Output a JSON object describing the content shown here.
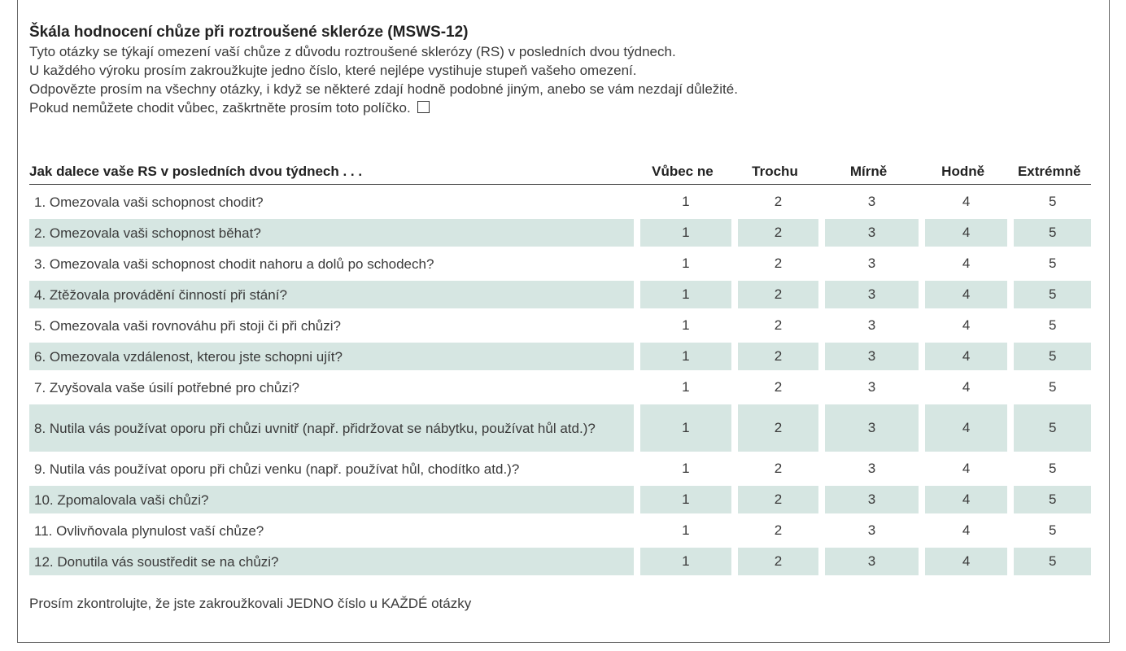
{
  "title": "Škála hodnocení chůze při roztroušené skleróze (MSWS-12)",
  "intro_lines": [
    "Tyto otázky se týkají omezení vaší chůze z důvodu roztroušené sklerózy (RS) v posledních dvou týdnech.",
    "U každého výroku prosím zakroužkujte jedno číslo, které nejlépe vystihuje stupeň vašeho omezení.",
    "Odpovězte prosím na všechny otázky, i když se některé zdají hodně podobné jiným, anebo se vám nezdají důležité.",
    "Pokud nemůžete chodit vůbec, zaškrtněte prosím toto políčko."
  ],
  "table": {
    "header_question": "Jak dalece vaše RS v posledních dvou týdnech . . .",
    "columns": [
      "Vůbec ne",
      "Trochu",
      "Mírně",
      "Hodně",
      "Extrémně"
    ],
    "rows": [
      {
        "q": "1. Omezovala vaši schopnost chodit?",
        "vals": [
          "1",
          "2",
          "3",
          "4",
          "5"
        ]
      },
      {
        "q": "2. Omezovala vaši schopnost běhat?",
        "vals": [
          "1",
          "2",
          "3",
          "4",
          "5"
        ]
      },
      {
        "q": "3. Omezovala vaši schopnost chodit nahoru a dolů po schodech?",
        "vals": [
          "1",
          "2",
          "3",
          "4",
          "5"
        ]
      },
      {
        "q": "4. Ztěžovala provádění činností při stání?",
        "vals": [
          "1",
          "2",
          "3",
          "4",
          "5"
        ]
      },
      {
        "q": "5. Omezovala vaši rovnováhu při stoji či při chůzi?",
        "vals": [
          "1",
          "2",
          "3",
          "4",
          "5"
        ]
      },
      {
        "q": "6. Omezovala vzdálenost, kterou jste schopni ujít?",
        "vals": [
          "1",
          "2",
          "3",
          "4",
          "5"
        ]
      },
      {
        "q": "7. Zvyšovala vaše úsilí potřebné pro chůzi?",
        "vals": [
          "1",
          "2",
          "3",
          "4",
          "5"
        ]
      },
      {
        "q": "8.  Nutila vás používat oporu při chůzi uvnitř (např. přidržovat se nábytku, používat hůl atd.)?",
        "vals": [
          "1",
          "2",
          "3",
          "4",
          "5"
        ]
      },
      {
        "q": "9.  Nutila vás používat oporu při chůzi venku (např. používat hůl, chodítko atd.)?",
        "vals": [
          "1",
          "2",
          "3",
          "4",
          "5"
        ]
      },
      {
        "q": "10. Zpomalovala vaši chůzi?",
        "vals": [
          "1",
          "2",
          "3",
          "4",
          "5"
        ]
      },
      {
        "q": "11. Ovlivňovala plynulost vaší chůze?",
        "vals": [
          "1",
          "2",
          "3",
          "4",
          "5"
        ]
      },
      {
        "q": "12. Donutila vás soustředit se na chůzi?",
        "vals": [
          "1",
          "2",
          "3",
          "4",
          "5"
        ]
      }
    ]
  },
  "footer": "Prosím zkontrolujte, že jste zakroužkovali JEDNO číslo u KAŽDÉ otázky",
  "colors": {
    "row_shade": "#d6e6e2",
    "border": "#333333"
  }
}
